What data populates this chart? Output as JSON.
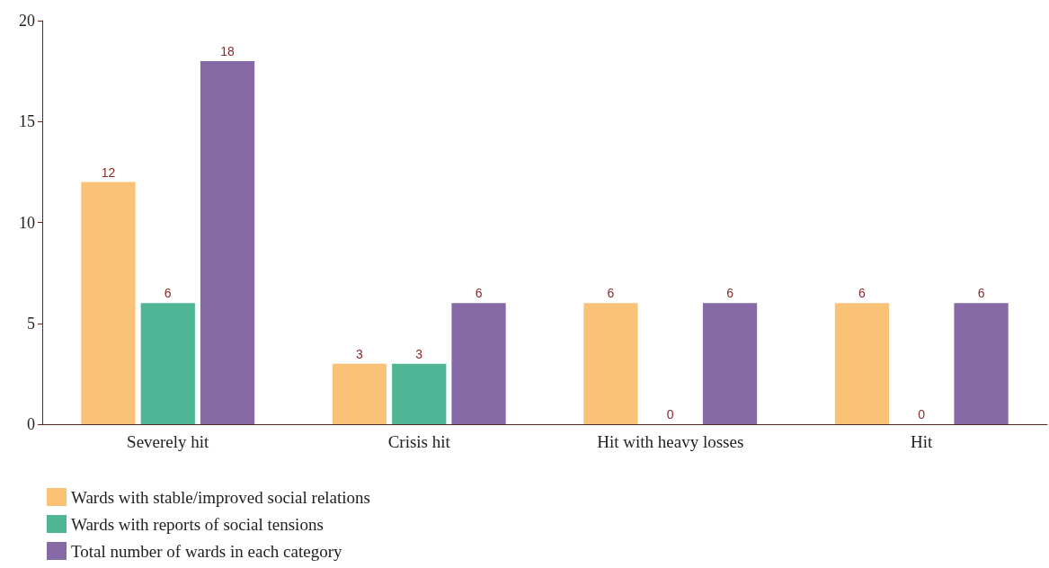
{
  "chart_data": {
    "type": "bar",
    "categories": [
      "Severely hit",
      "Crisis hit",
      "Hit with heavy losses",
      "Hit"
    ],
    "series": [
      {
        "name": "Wards with stable/improved social relations",
        "color": "#f9c277",
        "values": [
          12,
          3,
          6,
          6
        ]
      },
      {
        "name": "Wards with reports of social tensions",
        "color": "#4fb594",
        "values": [
          6,
          3,
          0,
          0
        ]
      },
      {
        "name": "Total number of wards in each category",
        "color": "#856aa6",
        "values": [
          18,
          6,
          6,
          6
        ]
      }
    ],
    "ylim": [
      0,
      20
    ],
    "yticks": [
      0,
      5,
      10,
      15,
      20
    ],
    "grid": false,
    "legend": "bottom left",
    "data_labels": true
  }
}
